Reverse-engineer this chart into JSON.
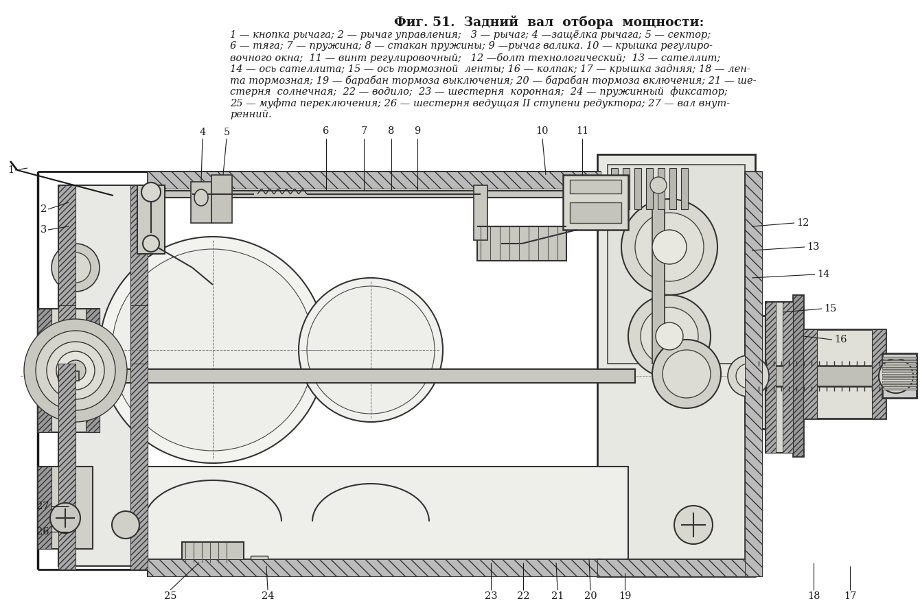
{
  "title": "Фиг. 51.  Задний  вал  отбора  мощности:",
  "desc_line1": "1 — кнопка рычага; 2 — рычаг управления;   3 — рычаг; 4 —защёлка рычага; 5 — сектор;",
  "desc_line2": "6 — тяга; 7 — пружина; 8 — стакан пружины; 9 —рычаг валика. 10 — крышка регулиро-",
  "desc_line3": "вочного окна;  11 — винт регулировочный;   12 —болт технологический;  13 — сателлит;",
  "desc_line4": "14 — ось сателлита; 15 — ось тормозной  ленты; 16 — колпак; 17 — крышка задняя; 18 — лен-",
  "desc_line5": "та тормозная; 19 — барабан тормоза выключения; 20 — барабан тормоза включения; 21 — ше-",
  "desc_line6": "стерня  солнечная;  22 — водило;  23 — шестерня  коронная;  24 — пружинный  фиксатор;",
  "desc_line7": "25 — муфта переключения; 26 — шестерня ведущая II ступени редуктора; 27 — вал внут-",
  "desc_line8": "ренний.",
  "bg_color": "#ffffff",
  "text_color": "#1a1a1a",
  "figsize": [
    13.4,
    8.92
  ],
  "dpi": 100
}
